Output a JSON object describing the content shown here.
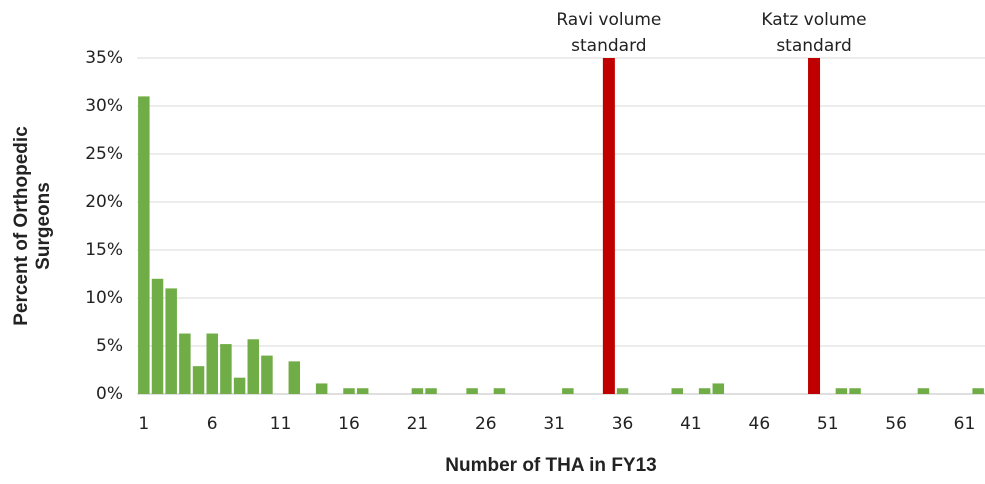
{
  "chart_data": {
    "type": "bar",
    "xlabel": "Number of THA in FY13",
    "ylabel": [
      "Percent of Orthopedic",
      "Surgeons"
    ],
    "categories": [
      "1",
      null,
      null,
      null,
      null,
      "6",
      null,
      null,
      null,
      null,
      "11",
      null,
      null,
      null,
      null,
      "16",
      null,
      null,
      null,
      null,
      "21",
      null,
      null,
      null,
      null,
      "26",
      null,
      null,
      null,
      null,
      "31",
      null,
      null,
      null,
      null,
      "36",
      null,
      null,
      null,
      null,
      "41",
      null,
      null,
      null,
      null,
      "46",
      null,
      null,
      null,
      null,
      "51",
      null,
      null,
      null,
      null,
      "56",
      null,
      null,
      null,
      null,
      "61",
      null
    ],
    "values": [
      31,
      12,
      11,
      6.3,
      2.9,
      6.3,
      5.2,
      1.7,
      5.7,
      4,
      0,
      3.4,
      0,
      1.1,
      0,
      0.6,
      0.6,
      0,
      0,
      0,
      0.6,
      0.6,
      0,
      0,
      0.6,
      0,
      0.6,
      0,
      0,
      0,
      0,
      0.6,
      0,
      0,
      0,
      0.6,
      0,
      0,
      0,
      0.6,
      0,
      0.6,
      1.1,
      0,
      0,
      0,
      0,
      0,
      0,
      0,
      0,
      0.6,
      0.6,
      0,
      0,
      0,
      0,
      0.6,
      0,
      0,
      0,
      0.6
    ],
    "color": "#70ad47",
    "ylim": [
      0,
      35
    ],
    "yticks": [
      {
        "value": 0,
        "label": "0%"
      },
      {
        "value": 5,
        "label": "5%"
      },
      {
        "value": 10,
        "label": "10%"
      },
      {
        "value": 15,
        "label": "15%"
      },
      {
        "value": 20,
        "label": "20%"
      },
      {
        "value": 25,
        "label": "25%"
      },
      {
        "value": 30,
        "label": "30%"
      },
      {
        "value": 35,
        "label": "35%"
      }
    ],
    "grid": true,
    "annotations": [
      {
        "label": [
          "Ravi volume",
          "standard"
        ],
        "x": 35,
        "color": "#c00000"
      },
      {
        "label": [
          "Katz volume",
          "standard"
        ],
        "x": 50,
        "color": "#c00000"
      }
    ]
  }
}
